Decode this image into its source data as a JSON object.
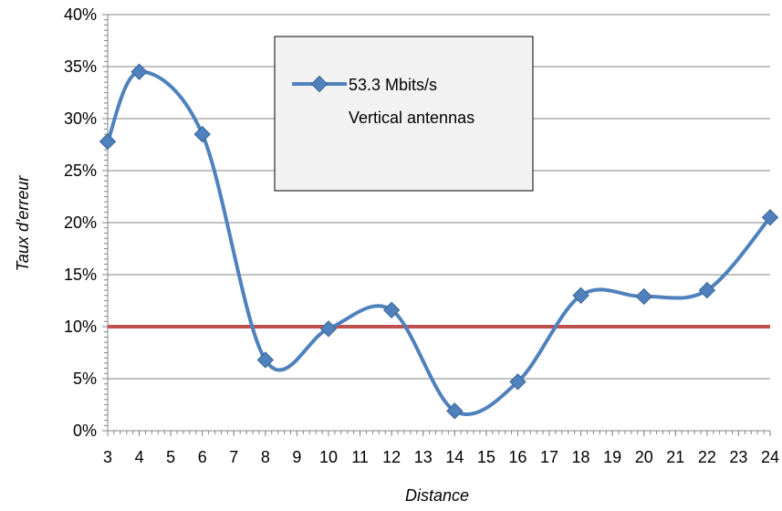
{
  "chart_data": {
    "type": "line",
    "title": "",
    "xlabel": "Distance",
    "ylabel": "Taux d'erreur",
    "x_ticks": [
      "3",
      "4",
      "5",
      "6",
      "7",
      "8",
      "9",
      "10",
      "11",
      "12",
      "13",
      "14",
      "15",
      "16",
      "17",
      "18",
      "19",
      "20",
      "21",
      "22",
      "23",
      "24"
    ],
    "y_ticks": [
      "0%",
      "5%",
      "10%",
      "15%",
      "20%",
      "25%",
      "30%",
      "35%",
      "40%"
    ],
    "ylim": [
      0,
      0.4
    ],
    "xlim": [
      3,
      24
    ],
    "grid": true,
    "smooth": true,
    "legend_position": "top-center",
    "series": [
      {
        "name": "53.3 Mbits/s Vertical antennas",
        "color": "#4F81BD",
        "marker": "diamond",
        "x": [
          3,
          4,
          6,
          8,
          10,
          12,
          14,
          16,
          18,
          20,
          22,
          24
        ],
        "values": [
          0.278,
          0.345,
          0.285,
          0.068,
          0.098,
          0.116,
          0.019,
          0.047,
          0.13,
          0.129,
          0.135,
          0.205
        ]
      }
    ],
    "threshold": {
      "value": 0.1,
      "color": "#C0504D"
    },
    "legend": {
      "line1": "53.3 Mbits/s",
      "line2": "Vertical antennas"
    }
  }
}
